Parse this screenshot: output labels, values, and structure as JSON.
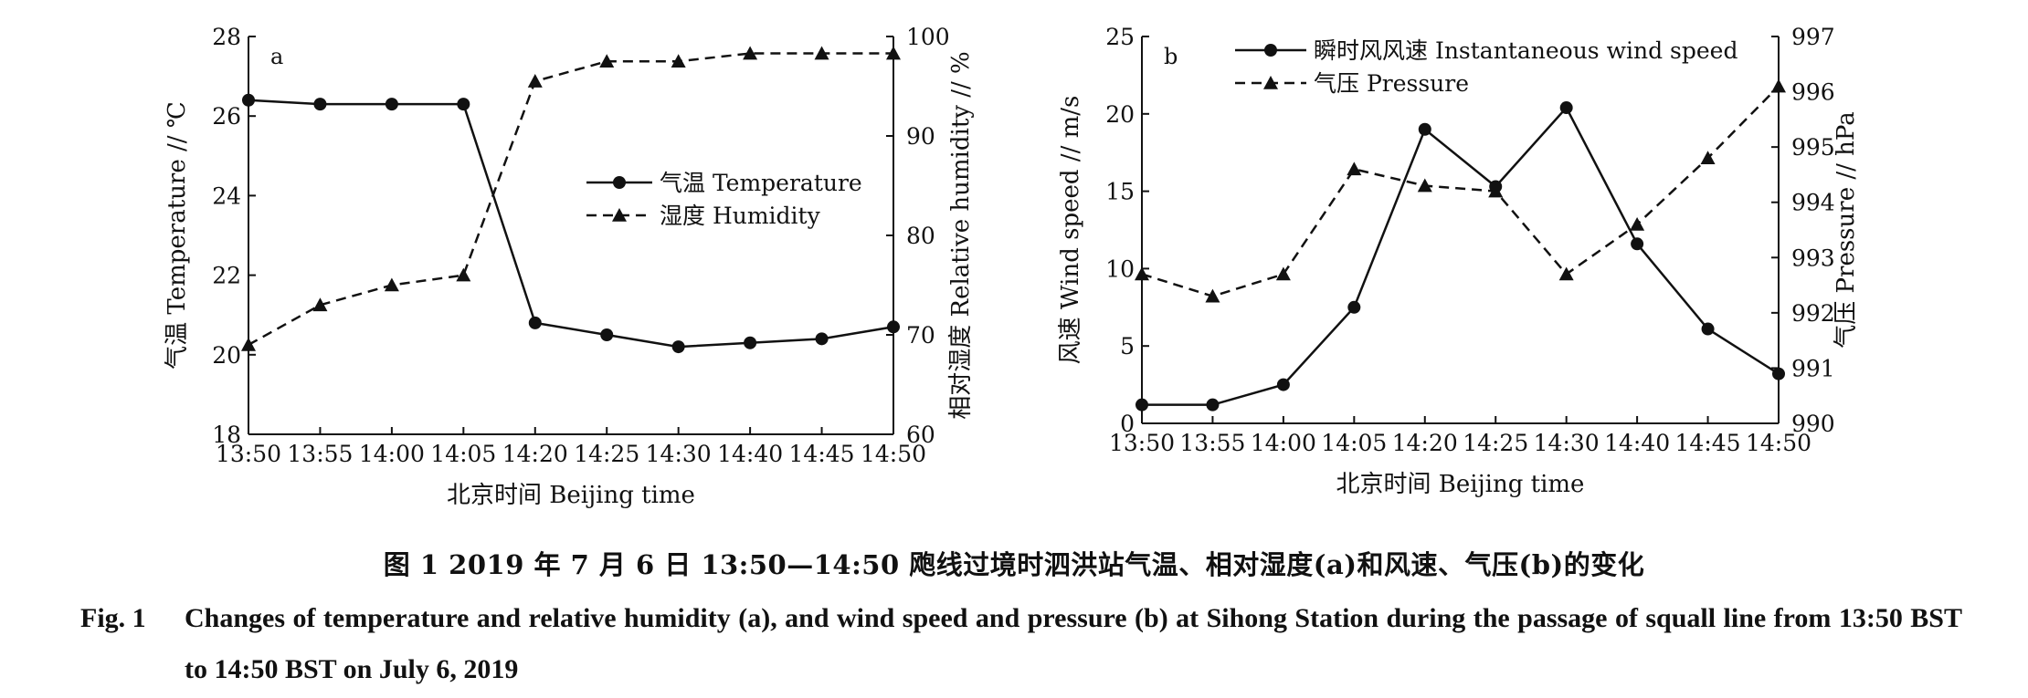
{
  "figure": {
    "caption_cn": "图 1   2019 年 7 月 6 日 13:50—14:50 飑线过境时泗洪站气温、相对湿度(a)和风速、气压(b)的变化",
    "caption_en_label": "Fig. 1",
    "caption_en": "Changes of temperature and relative humidity (a), and wind speed and pressure (b) at Sihong Station during the passage of squall line from 13:50 BST to 14:50 BST on July 6, 2019"
  },
  "chart_data": [
    {
      "type": "line",
      "panel_label": "a",
      "categories": [
        "13:50",
        "13:55",
        "14:00",
        "14:05",
        "14:20",
        "14:25",
        "14:30",
        "14:40",
        "14:45",
        "14:50"
      ],
      "xlabel": "北京时间 Beijing time",
      "ylabel": "气温 Temperature // ℃",
      "y2label": "相对湿度 Relative humidity // %",
      "ylim": [
        18,
        28
      ],
      "yticks": [
        18,
        20,
        22,
        24,
        26,
        28
      ],
      "y2lim": [
        60,
        100
      ],
      "y2ticks": [
        60,
        70,
        80,
        90,
        100
      ],
      "legend_position": "center-right",
      "grid": false,
      "series": [
        {
          "name": "气温 Temperature",
          "axis": "left",
          "style": "solid",
          "marker": "circle",
          "values": [
            26.4,
            26.3,
            26.3,
            26.3,
            20.8,
            20.5,
            20.2,
            20.3,
            20.4,
            20.7
          ]
        },
        {
          "name": "湿度 Humidity",
          "axis": "right",
          "style": "dashed",
          "marker": "triangle",
          "values": [
            69,
            73,
            75,
            76,
            95.5,
            97.5,
            97.5,
            98.3,
            98.3,
            98.3
          ]
        }
      ]
    },
    {
      "type": "line",
      "panel_label": "b",
      "categories": [
        "13:50",
        "13:55",
        "14:00",
        "14:05",
        "14:20",
        "14:25",
        "14:30",
        "14:40",
        "14:45",
        "14:50"
      ],
      "xlabel": "北京时间 Beijing time",
      "ylabel": "风速 Wind speed // m/s",
      "y2label": "气压 Pressure // hPa",
      "ylim": [
        0,
        25
      ],
      "yticks": [
        0,
        5,
        10,
        15,
        20,
        25
      ],
      "y2lim": [
        990,
        997
      ],
      "y2ticks": [
        990,
        991,
        992,
        993,
        994,
        995,
        996,
        997
      ],
      "legend_position": "top-left",
      "grid": false,
      "series": [
        {
          "name": "瞬时风风速 Instantaneous wind speed",
          "axis": "left",
          "style": "solid",
          "marker": "circle",
          "values": [
            1.2,
            1.2,
            2.5,
            7.5,
            19,
            15.3,
            20.4,
            11.6,
            6.1,
            3.2
          ]
        },
        {
          "name": "气压 Pressure",
          "axis": "right",
          "style": "dashed",
          "marker": "triangle",
          "values": [
            992.7,
            992.3,
            992.7,
            994.6,
            994.3,
            994.2,
            992.7,
            993.6,
            994.8,
            996.1
          ]
        }
      ]
    }
  ]
}
